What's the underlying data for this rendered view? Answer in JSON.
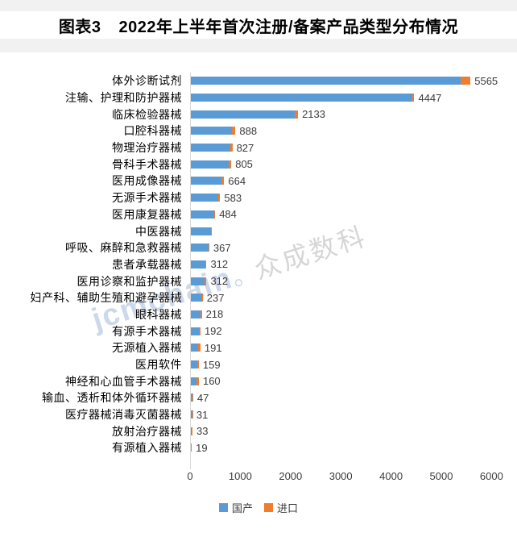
{
  "page": {
    "title_prefix": "图表3",
    "title_text": "2022年上半年首次注册/备案产品类型分布情况"
  },
  "watermark": {
    "latin": "jcmchain",
    "separator": "。",
    "cjk": "众成数科"
  },
  "chart_data": {
    "type": "bar",
    "orientation": "horizontal",
    "title": "图表3 2022年上半年首次注册/备案产品类型分布情况",
    "categories": [
      "体外诊断试剂",
      "注输、护理和防护器械",
      "临床检验器械",
      "口腔科器械",
      "物理治疗器械",
      "骨科手术器械",
      "医用成像器械",
      "无源手术器械",
      "医用康复器械",
      "中医器械",
      "呼吸、麻醉和急救器械",
      "患者承载器械",
      "医用诊察和监护器械",
      "妇产科、辅助生殖和避孕器械",
      "眼科器械",
      "有源手术器械",
      "无源植入器械",
      "医用软件",
      "神经和心血管手术器械",
      "输血、透析和体外循环器械",
      "医疗器械消毒灭菌器械",
      "放射治疗器械",
      "有源植入器械"
    ],
    "series": [
      {
        "name": "国产",
        "color": "#5B9BD5",
        "values": [
          5365,
          4402,
          2073,
          818,
          792,
          760,
          604,
          538,
          459,
          395,
          347,
          292,
          277,
          217,
          193,
          162,
          151,
          134,
          120,
          35,
          26,
          21,
          6
        ]
      },
      {
        "name": "进口",
        "color": "#ED7D31",
        "values": [
          200,
          45,
          60,
          70,
          35,
          45,
          60,
          45,
          25,
          5,
          20,
          20,
          35,
          20,
          25,
          30,
          40,
          25,
          40,
          12,
          5,
          12,
          13
        ]
      }
    ],
    "totals": [
      5565,
      4447,
      2133,
      888,
      827,
      805,
      664,
      583,
      484,
      400,
      367,
      312,
      312,
      237,
      218,
      192,
      191,
      159,
      160,
      47,
      31,
      33,
      19
    ],
    "total_labels": [
      "5565",
      "4447",
      "2133",
      "888",
      "827",
      "805",
      "664",
      "583",
      "484",
      "",
      "367",
      "312",
      "312",
      "237",
      "218",
      "192",
      "191",
      "159",
      "160",
      "47",
      "31",
      "33",
      "19"
    ],
    "xlabel": "",
    "ylabel": "",
    "xlim": [
      0,
      6000
    ],
    "xticks": [
      0,
      1000,
      2000,
      3000,
      4000,
      5000,
      6000
    ],
    "grid": false,
    "legend_position": "bottom",
    "axis_line_color": "#d9d9d9"
  }
}
